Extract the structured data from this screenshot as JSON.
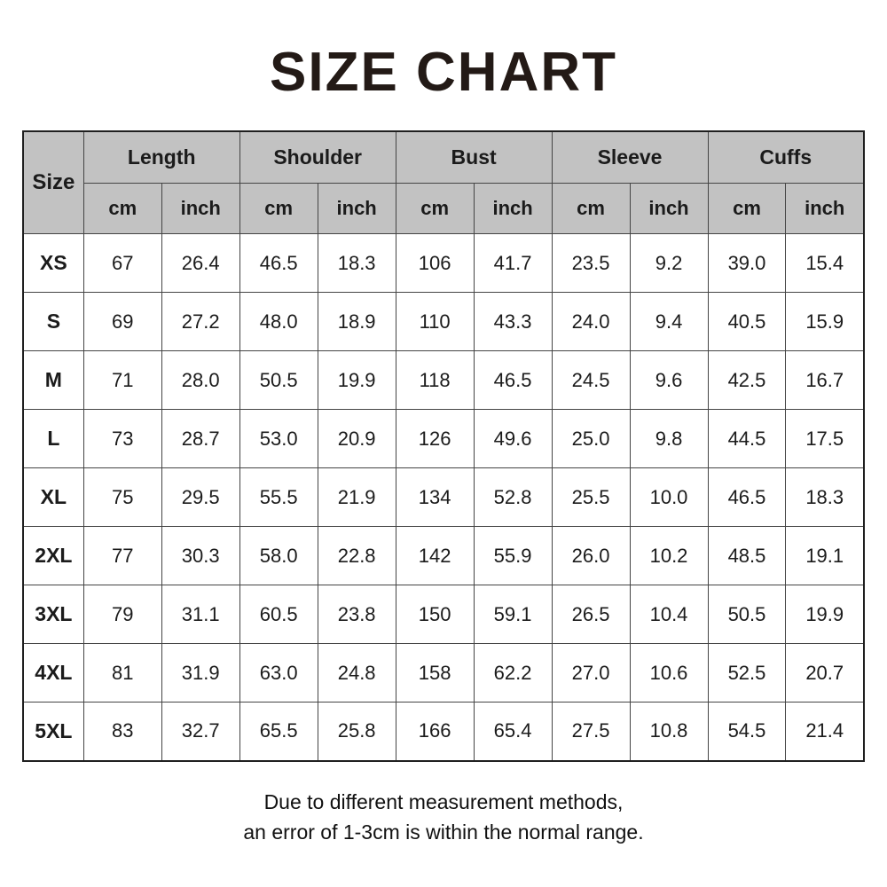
{
  "title": "SIZE CHART",
  "colors": {
    "header_bg": "#c2c2c2",
    "border": "#444444",
    "outer_border": "#1f1f1f",
    "text": "#1b1b1b"
  },
  "table": {
    "size_header": "Size",
    "groups": [
      {
        "label": "Length"
      },
      {
        "label": "Shoulder"
      },
      {
        "label": "Bust"
      },
      {
        "label": "Sleeve"
      },
      {
        "label": "Cuffs"
      }
    ],
    "units": [
      "cm",
      "inch"
    ],
    "rows": [
      {
        "size": "XS",
        "values": [
          "67",
          "26.4",
          "46.5",
          "18.3",
          "106",
          "41.7",
          "23.5",
          "9.2",
          "39.0",
          "15.4"
        ]
      },
      {
        "size": "S",
        "values": [
          "69",
          "27.2",
          "48.0",
          "18.9",
          "110",
          "43.3",
          "24.0",
          "9.4",
          "40.5",
          "15.9"
        ]
      },
      {
        "size": "M",
        "values": [
          "71",
          "28.0",
          "50.5",
          "19.9",
          "118",
          "46.5",
          "24.5",
          "9.6",
          "42.5",
          "16.7"
        ]
      },
      {
        "size": "L",
        "values": [
          "73",
          "28.7",
          "53.0",
          "20.9",
          "126",
          "49.6",
          "25.0",
          "9.8",
          "44.5",
          "17.5"
        ]
      },
      {
        "size": "XL",
        "values": [
          "75",
          "29.5",
          "55.5",
          "21.9",
          "134",
          "52.8",
          "25.5",
          "10.0",
          "46.5",
          "18.3"
        ]
      },
      {
        "size": "2XL",
        "values": [
          "77",
          "30.3",
          "58.0",
          "22.8",
          "142",
          "55.9",
          "26.0",
          "10.2",
          "48.5",
          "19.1"
        ]
      },
      {
        "size": "3XL",
        "values": [
          "79",
          "31.1",
          "60.5",
          "23.8",
          "150",
          "59.1",
          "26.5",
          "10.4",
          "50.5",
          "19.9"
        ]
      },
      {
        "size": "4XL",
        "values": [
          "81",
          "31.9",
          "63.0",
          "24.8",
          "158",
          "62.2",
          "27.0",
          "10.6",
          "52.5",
          "20.7"
        ]
      },
      {
        "size": "5XL",
        "values": [
          "83",
          "32.7",
          "65.5",
          "25.8",
          "166",
          "65.4",
          "27.5",
          "10.8",
          "54.5",
          "21.4"
        ]
      }
    ]
  },
  "note": {
    "line1": "Due to different measurement methods,",
    "line2": "an error of 1-3cm is within the normal range."
  }
}
